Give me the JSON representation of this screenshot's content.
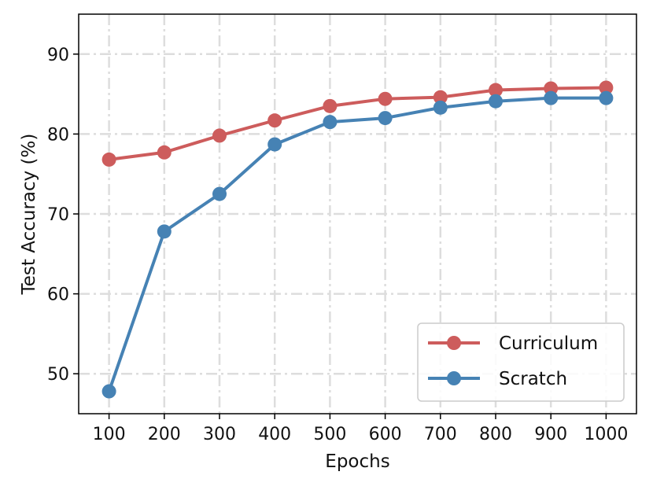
{
  "chart_data": {
    "type": "line",
    "xlabel": "Epochs",
    "ylabel": "Test Accuracy (%)",
    "x": [
      100,
      200,
      300,
      400,
      500,
      600,
      700,
      800,
      900,
      1000
    ],
    "x_tick_labels": [
      "100",
      "200",
      "300",
      "400",
      "500",
      "600",
      "700",
      "800",
      "900",
      "1000"
    ],
    "xlim": [
      45,
      1055
    ],
    "ylim": [
      45,
      95
    ],
    "y_ticks": [
      50,
      60,
      70,
      80,
      90
    ],
    "y_tick_labels": [
      "50",
      "60",
      "70",
      "80",
      "90"
    ],
    "grid": true,
    "legend_position": "lower right",
    "series": [
      {
        "name": "Curriculum",
        "color": "#cd5c5c",
        "values": [
          76.8,
          77.7,
          79.8,
          81.7,
          83.5,
          84.4,
          84.6,
          85.5,
          85.7,
          85.8
        ]
      },
      {
        "name": "Scratch",
        "color": "#4682b4",
        "values": [
          47.8,
          67.8,
          72.5,
          78.7,
          81.5,
          82.0,
          83.3,
          84.1,
          84.5,
          84.5
        ]
      }
    ]
  }
}
